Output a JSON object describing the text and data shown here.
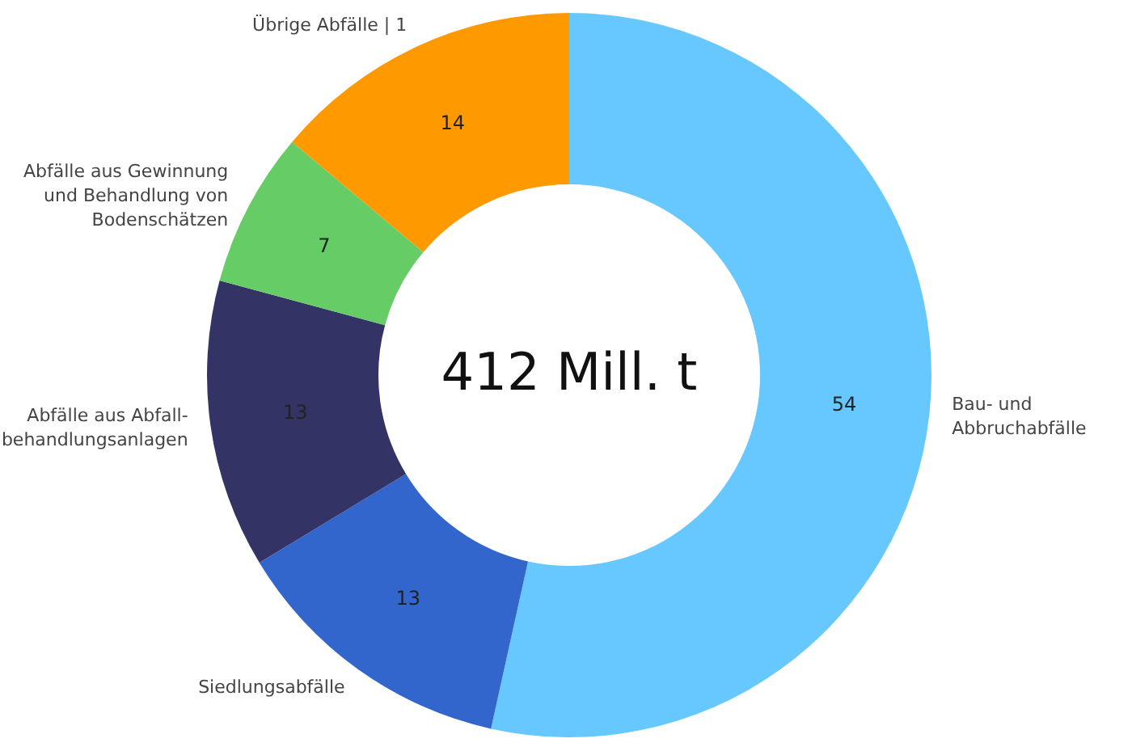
{
  "chart_data": {
    "type": "donut",
    "categories": [
      "Bau- und\nAbbruchabfälle",
      "Siedlungsabfälle",
      "Abfälle aus Abfall-\nbehandlungsanlagen",
      "Abfälle aus Gewinnung\nund Behandlung von\nBodenschätzen",
      "Übrige Abfälle | 1"
    ],
    "values": [
      54,
      13,
      13,
      7,
      14
    ],
    "colors": [
      "#66c8ff",
      "#3366cc",
      "#333366",
      "#66cc66",
      "#ff9900"
    ],
    "data_labels": true,
    "annotations": [
      "412 Mill. t"
    ]
  }
}
